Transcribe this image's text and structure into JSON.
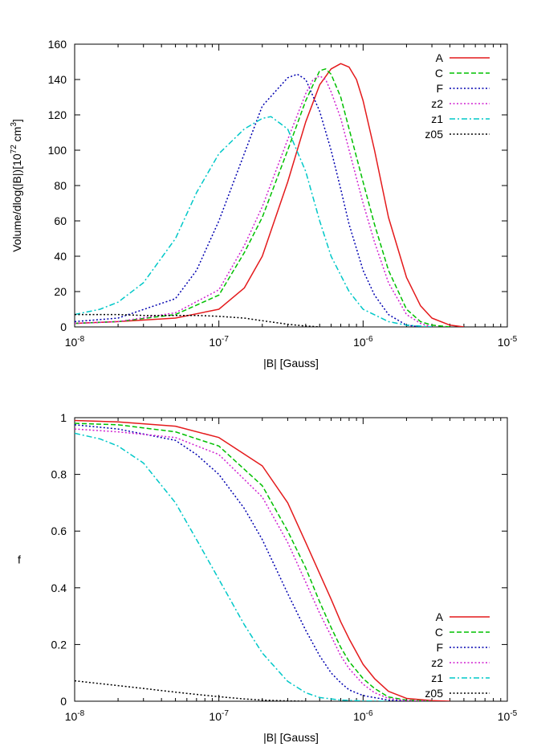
{
  "chart_data": [
    {
      "type": "line",
      "xscale": "log",
      "xlim": [
        1e-08,
        1e-05
      ],
      "ylim": [
        0,
        160
      ],
      "xlabel": "|B| [Gauss]",
      "ylabel_parts": [
        "Volume/dlog(|B|)[10",
        "72",
        " cm",
        "3",
        "]"
      ],
      "yticks": [
        0,
        20,
        40,
        60,
        80,
        100,
        120,
        140,
        160
      ],
      "xticks": [
        {
          "base": "10",
          "exp": "-8",
          "value": 1e-08
        },
        {
          "base": "10",
          "exp": "-7",
          "value": 1e-07
        },
        {
          "base": "10",
          "exp": "-6",
          "value": 1e-06
        },
        {
          "base": "10",
          "exp": "-5",
          "value": 1e-05
        }
      ],
      "legend_position": "top-right",
      "grid": false,
      "series": [
        {
          "name": "A",
          "color": "#e41a1c",
          "dash": "solid",
          "points": [
            [
              1e-08,
              2
            ],
            [
              2e-08,
              3
            ],
            [
              5e-08,
              5
            ],
            [
              1e-07,
              10
            ],
            [
              1.5e-07,
              22
            ],
            [
              2e-07,
              40
            ],
            [
              3e-07,
              82
            ],
            [
              4e-07,
              116
            ],
            [
              5e-07,
              137
            ],
            [
              6e-07,
              146
            ],
            [
              7e-07,
              149
            ],
            [
              8e-07,
              147
            ],
            [
              9e-07,
              140
            ],
            [
              1e-06,
              128
            ],
            [
              1.2e-06,
              100
            ],
            [
              1.5e-06,
              62
            ],
            [
              2e-06,
              28
            ],
            [
              2.5e-06,
              12
            ],
            [
              3e-06,
              5
            ],
            [
              4e-06,
              1
            ],
            [
              5e-06,
              0
            ]
          ]
        },
        {
          "name": "C",
          "color": "#00c000",
          "dash": "dashed",
          "points": [
            [
              1e-08,
              2
            ],
            [
              2e-08,
              3
            ],
            [
              5e-08,
              7
            ],
            [
              1e-07,
              18
            ],
            [
              1.5e-07,
              42
            ],
            [
              2e-07,
              62
            ],
            [
              3e-07,
              100
            ],
            [
              4e-07,
              128
            ],
            [
              5e-07,
              145
            ],
            [
              5.5e-07,
              146
            ],
            [
              6e-07,
              143
            ],
            [
              7e-07,
              130
            ],
            [
              8e-07,
              112
            ],
            [
              1e-06,
              82
            ],
            [
              1.2e-06,
              58
            ],
            [
              1.5e-06,
              32
            ],
            [
              2e-06,
              10
            ],
            [
              2.5e-06,
              3
            ],
            [
              3e-06,
              1
            ],
            [
              4e-06,
              0
            ]
          ]
        },
        {
          "name": "F",
          "color": "#0000b0",
          "dash": "dotted",
          "points": [
            [
              1e-08,
              3
            ],
            [
              2e-08,
              5
            ],
            [
              5e-08,
              16
            ],
            [
              7e-08,
              32
            ],
            [
              1e-07,
              60
            ],
            [
              1.5e-07,
              98
            ],
            [
              2e-07,
              125
            ],
            [
              3e-07,
              141
            ],
            [
              3.5e-07,
              143
            ],
            [
              4e-07,
              140
            ],
            [
              5e-07,
              122
            ],
            [
              6e-07,
              100
            ],
            [
              7e-07,
              78
            ],
            [
              8e-07,
              58
            ],
            [
              1e-06,
              32
            ],
            [
              1.2e-06,
              18
            ],
            [
              1.5e-06,
              7
            ],
            [
              2e-06,
              1
            ],
            [
              2.5e-06,
              0
            ]
          ]
        },
        {
          "name": "z2",
          "color": "#d020d0",
          "dash": "dotted",
          "points": [
            [
              1e-08,
              2
            ],
            [
              2e-08,
              3
            ],
            [
              5e-08,
              8
            ],
            [
              1e-07,
              21
            ],
            [
              1.5e-07,
              46
            ],
            [
              2e-07,
              68
            ],
            [
              3e-07,
              106
            ],
            [
              4e-07,
              132
            ],
            [
              4.5e-07,
              140
            ],
            [
              5e-07,
              142
            ],
            [
              5.5e-07,
              140
            ],
            [
              6e-07,
              133
            ],
            [
              7e-07,
              118
            ],
            [
              8e-07,
              100
            ],
            [
              1e-06,
              70
            ],
            [
              1.2e-06,
              48
            ],
            [
              1.5e-06,
              25
            ],
            [
              2e-06,
              7
            ],
            [
              2.5e-06,
              2
            ],
            [
              3e-06,
              0
            ]
          ]
        },
        {
          "name": "z1",
          "color": "#00c8c8",
          "dash": "dashdot",
          "points": [
            [
              1e-08,
              7
            ],
            [
              1.5e-08,
              10
            ],
            [
              2e-08,
              14
            ],
            [
              3e-08,
              25
            ],
            [
              5e-08,
              50
            ],
            [
              7e-08,
              76
            ],
            [
              1e-07,
              98
            ],
            [
              1.5e-07,
              112
            ],
            [
              2e-07,
              118
            ],
            [
              2.3e-07,
              119
            ],
            [
              3e-07,
              112
            ],
            [
              4e-07,
              88
            ],
            [
              5e-07,
              60
            ],
            [
              6e-07,
              40
            ],
            [
              8e-07,
              20
            ],
            [
              1e-06,
              10
            ],
            [
              1.5e-06,
              3
            ],
            [
              2e-06,
              1
            ],
            [
              3e-06,
              0
            ]
          ]
        },
        {
          "name": "z05",
          "color": "#000000",
          "dash": "dotted",
          "points": [
            [
              1e-08,
              7
            ],
            [
              2e-08,
              7
            ],
            [
              3e-08,
              6.5
            ],
            [
              5e-08,
              6.5
            ],
            [
              7e-08,
              6.5
            ],
            [
              1e-07,
              6
            ],
            [
              1.5e-07,
              5
            ],
            [
              2e-07,
              3.5
            ],
            [
              3e-07,
              1.5
            ],
            [
              4e-07,
              0.5
            ],
            [
              5e-07,
              0
            ]
          ]
        }
      ]
    },
    {
      "type": "line",
      "xscale": "log",
      "xlim": [
        1e-08,
        1e-05
      ],
      "ylim": [
        0,
        1
      ],
      "xlabel": "|B| [Gauss]",
      "ylabel": "f",
      "yticks": [
        "0",
        "0.2",
        "0.4",
        "0.6",
        "0.8",
        "1"
      ],
      "ytick_values": [
        0,
        0.2,
        0.4,
        0.6,
        0.8,
        1
      ],
      "xticks": [
        {
          "base": "10",
          "exp": "-8",
          "value": 1e-08
        },
        {
          "base": "10",
          "exp": "-7",
          "value": 1e-07
        },
        {
          "base": "10",
          "exp": "-6",
          "value": 1e-06
        },
        {
          "base": "10",
          "exp": "-5",
          "value": 1e-05
        }
      ],
      "legend_position": "bottom-right",
      "grid": false,
      "series": [
        {
          "name": "A",
          "color": "#e41a1c",
          "dash": "solid",
          "points": [
            [
              1e-08,
              0.99
            ],
            [
              2e-08,
              0.985
            ],
            [
              5e-08,
              0.97
            ],
            [
              1e-07,
              0.93
            ],
            [
              2e-07,
              0.83
            ],
            [
              3e-07,
              0.7
            ],
            [
              4e-07,
              0.56
            ],
            [
              5e-07,
              0.45
            ],
            [
              6e-07,
              0.36
            ],
            [
              7e-07,
              0.28
            ],
            [
              8e-07,
              0.22
            ],
            [
              1e-06,
              0.13
            ],
            [
              1.2e-06,
              0.08
            ],
            [
              1.5e-06,
              0.035
            ],
            [
              2e-06,
              0.01
            ],
            [
              3e-06,
              0.002
            ],
            [
              4e-06,
              0
            ]
          ]
        },
        {
          "name": "C",
          "color": "#00c000",
          "dash": "dashed",
          "points": [
            [
              1e-08,
              0.98
            ],
            [
              2e-08,
              0.975
            ],
            [
              5e-08,
              0.95
            ],
            [
              1e-07,
              0.9
            ],
            [
              2e-07,
              0.76
            ],
            [
              3e-07,
              0.6
            ],
            [
              4e-07,
              0.47
            ],
            [
              5e-07,
              0.35
            ],
            [
              6e-07,
              0.26
            ],
            [
              7e-07,
              0.19
            ],
            [
              8e-07,
              0.14
            ],
            [
              1e-06,
              0.08
            ],
            [
              1.2e-06,
              0.045
            ],
            [
              1.5e-06,
              0.015
            ],
            [
              2e-06,
              0.004
            ],
            [
              3e-06,
              0
            ]
          ]
        },
        {
          "name": "F",
          "color": "#0000b0",
          "dash": "dotted",
          "points": [
            [
              1e-08,
              0.975
            ],
            [
              2e-08,
              0.96
            ],
            [
              5e-08,
              0.92
            ],
            [
              7e-08,
              0.87
            ],
            [
              1e-07,
              0.8
            ],
            [
              1.5e-07,
              0.68
            ],
            [
              2e-07,
              0.57
            ],
            [
              3e-07,
              0.38
            ],
            [
              4e-07,
              0.25
            ],
            [
              5e-07,
              0.16
            ],
            [
              6e-07,
              0.1
            ],
            [
              7e-07,
              0.065
            ],
            [
              8e-07,
              0.04
            ],
            [
              1e-06,
              0.02
            ],
            [
              1.5e-06,
              0.004
            ],
            [
              2e-06,
              0
            ]
          ]
        },
        {
          "name": "z2",
          "color": "#d020d0",
          "dash": "dotted",
          "points": [
            [
              1e-08,
              0.96
            ],
            [
              2e-08,
              0.95
            ],
            [
              5e-08,
              0.93
            ],
            [
              1e-07,
              0.87
            ],
            [
              2e-07,
              0.72
            ],
            [
              3e-07,
              0.56
            ],
            [
              4e-07,
              0.42
            ],
            [
              5e-07,
              0.31
            ],
            [
              6e-07,
              0.23
            ],
            [
              7e-07,
              0.16
            ],
            [
              8e-07,
              0.115
            ],
            [
              1e-06,
              0.06
            ],
            [
              1.2e-06,
              0.03
            ],
            [
              1.5e-06,
              0.01
            ],
            [
              2e-06,
              0.002
            ],
            [
              3e-06,
              0
            ]
          ]
        },
        {
          "name": "z1",
          "color": "#00c8c8",
          "dash": "dashdot",
          "points": [
            [
              1e-08,
              0.945
            ],
            [
              1.5e-08,
              0.925
            ],
            [
              2e-08,
              0.9
            ],
            [
              3e-08,
              0.84
            ],
            [
              5e-08,
              0.7
            ],
            [
              7e-08,
              0.57
            ],
            [
              1e-07,
              0.43
            ],
            [
              1.5e-07,
              0.27
            ],
            [
              2e-07,
              0.17
            ],
            [
              3e-07,
              0.07
            ],
            [
              4e-07,
              0.03
            ],
            [
              5e-07,
              0.013
            ],
            [
              7e-07,
              0.004
            ],
            [
              1e-06,
              0.001
            ],
            [
              1.5e-06,
              0
            ]
          ]
        },
        {
          "name": "z05",
          "color": "#000000",
          "dash": "dotted",
          "points": [
            [
              1e-08,
              0.072
            ],
            [
              2e-08,
              0.055
            ],
            [
              3e-08,
              0.045
            ],
            [
              5e-08,
              0.032
            ],
            [
              7e-08,
              0.024
            ],
            [
              1e-07,
              0.016
            ],
            [
              1.5e-07,
              0.008
            ],
            [
              2e-07,
              0.004
            ],
            [
              3e-07,
              0.001
            ],
            [
              4e-07,
              0
            ]
          ]
        }
      ]
    }
  ]
}
